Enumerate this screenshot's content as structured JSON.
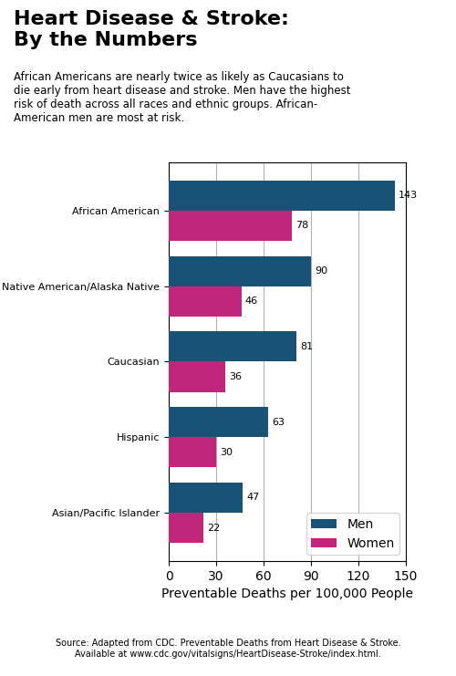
{
  "chart_data": {
    "type": "bar",
    "orientation": "horizontal",
    "title": "Heart Disease & Stroke:\nBy the Numbers",
    "subtitle": "African Americans are nearly twice as likely as Caucasians to\ndie early from heart disease and stroke. Men have the highest\nrisk of death across all races and ethnic groups. African-\nAmerican men are most at risk.",
    "categories": [
      "African American",
      "Native American/Alaska Native",
      "Caucasian",
      "Hispanic",
      "Asian/Pacific Islander"
    ],
    "series": [
      {
        "name": "Men",
        "color": "#1a5276",
        "values": [
          143,
          90,
          81,
          63,
          47
        ]
      },
      {
        "name": "Women",
        "color": "#c0267a",
        "values": [
          78,
          46,
          36,
          30,
          22
        ]
      }
    ],
    "xlim": [
      0,
      150
    ],
    "xticks": [
      0,
      30,
      60,
      90,
      120,
      150
    ],
    "xlabel": "Preventable Deaths per 100,000 People",
    "data_labels": true,
    "grid": true,
    "legend": "lower right",
    "annotations": [
      "Source: Adapted from CDC. Preventable Deaths from Heart Disease & Stroke.\nAvailable at www.cdc.gov/vitalsigns/HeartDisease-Stroke/index.html."
    ]
  }
}
